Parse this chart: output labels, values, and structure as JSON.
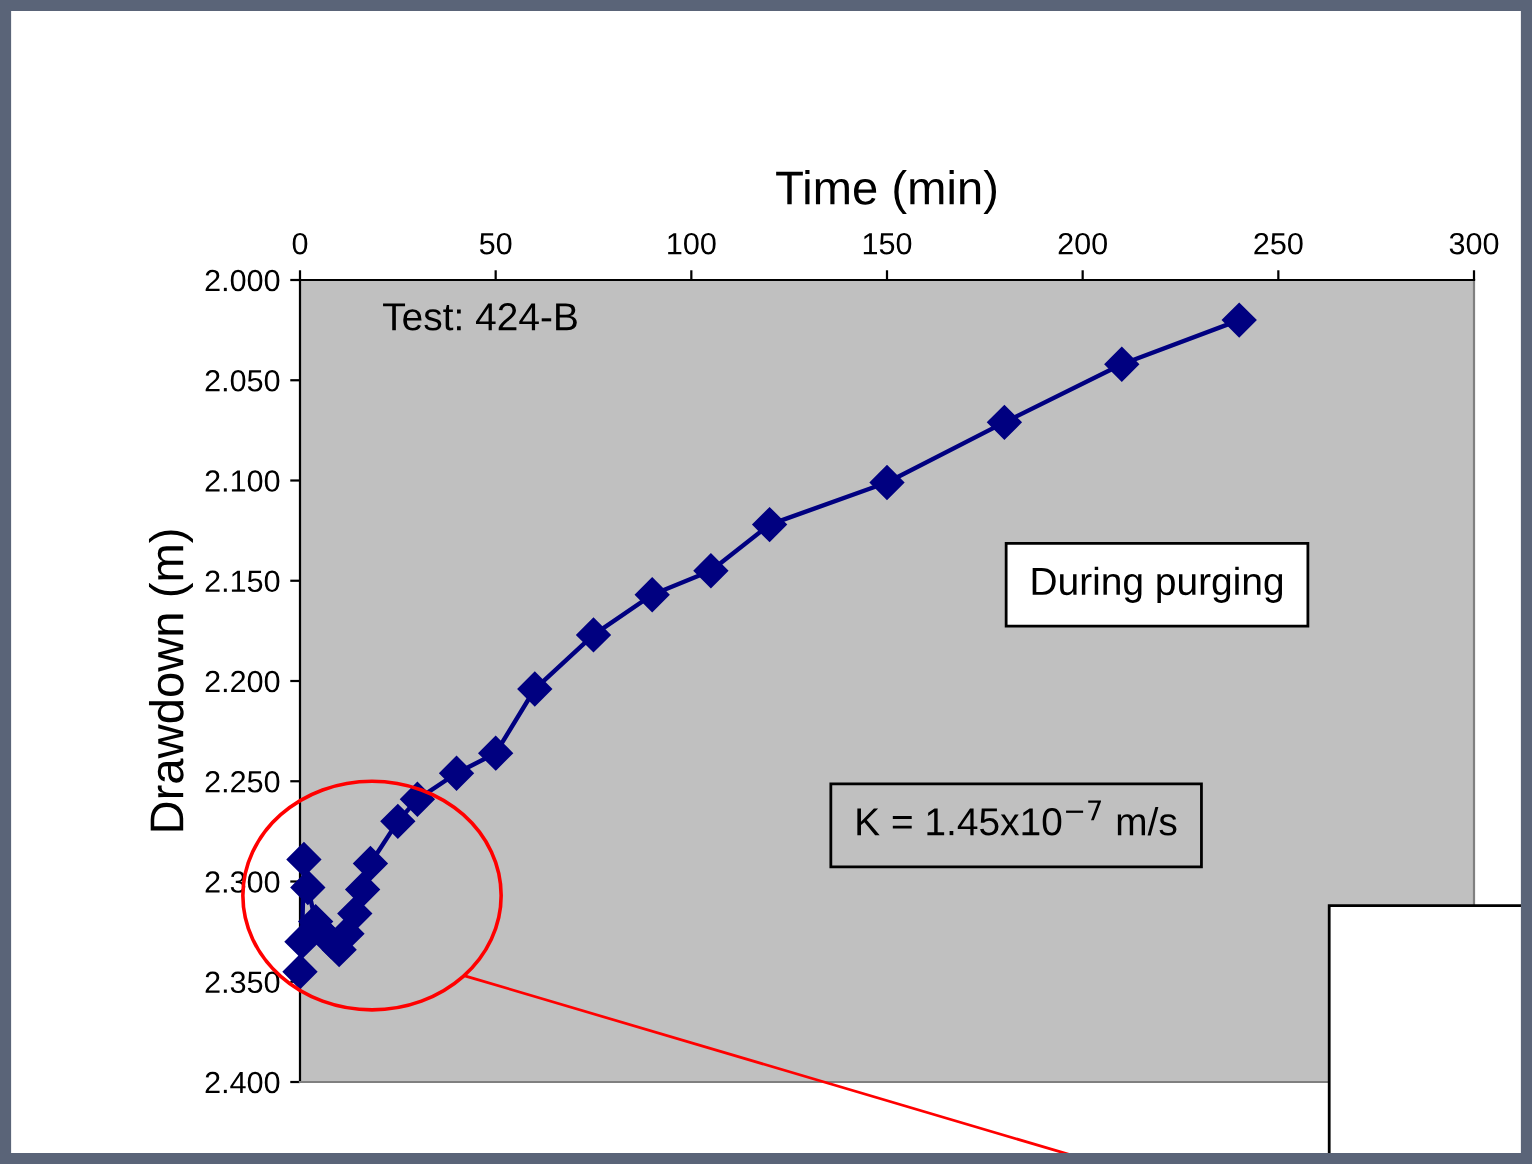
{
  "chart_data": {
    "type": "line",
    "xlabel": "Time (min)",
    "ylabel": "Drawdown (m)",
    "annotations": [
      "Test: 424-B",
      "During purging",
      "K = 1.45x10$^{−7}$ m/s"
    ],
    "series": [
      {
        "color": "#000080",
        "x": [
          0,
          0.5,
          1,
          2,
          4,
          6,
          8,
          10,
          12,
          14,
          16,
          18,
          25,
          30,
          40,
          50,
          60,
          75,
          90,
          105,
          120,
          150,
          180,
          210,
          240
        ],
        "values": [
          2.345,
          2.33,
          2.289,
          2.303,
          2.32,
          2.326,
          2.33,
          2.334,
          2.326,
          2.316,
          2.304,
          2.291,
          2.27,
          2.259,
          2.246,
          2.236,
          2.204,
          2.177,
          2.157,
          2.145,
          2.122,
          2.101,
          2.071,
          2.042,
          2.02
        ]
      }
    ],
    "marker": "diamond",
    "line_style": "solid",
    "grid": false,
    "legend": false,
    "xlim": [
      0,
      300
    ],
    "xticks": [
      0,
      50,
      100,
      150,
      200,
      250,
      300
    ],
    "ylim": [
      2.4,
      2.0
    ],
    "yticks": [
      {
        "value": 2.0,
        "label": "2.000"
      },
      {
        "value": 2.05,
        "label": "2.050"
      },
      {
        "value": 2.1,
        "label": "2.100"
      },
      {
        "value": 2.15,
        "label": "2.150"
      },
      {
        "value": 2.2,
        "label": "2.200"
      },
      {
        "value": 2.25,
        "label": "2.250"
      },
      {
        "value": 2.3,
        "label": "2.300"
      },
      {
        "value": 2.35,
        "label": "2.350"
      },
      {
        "value": 2.4,
        "label": "2.400"
      }
    ]
  }
}
